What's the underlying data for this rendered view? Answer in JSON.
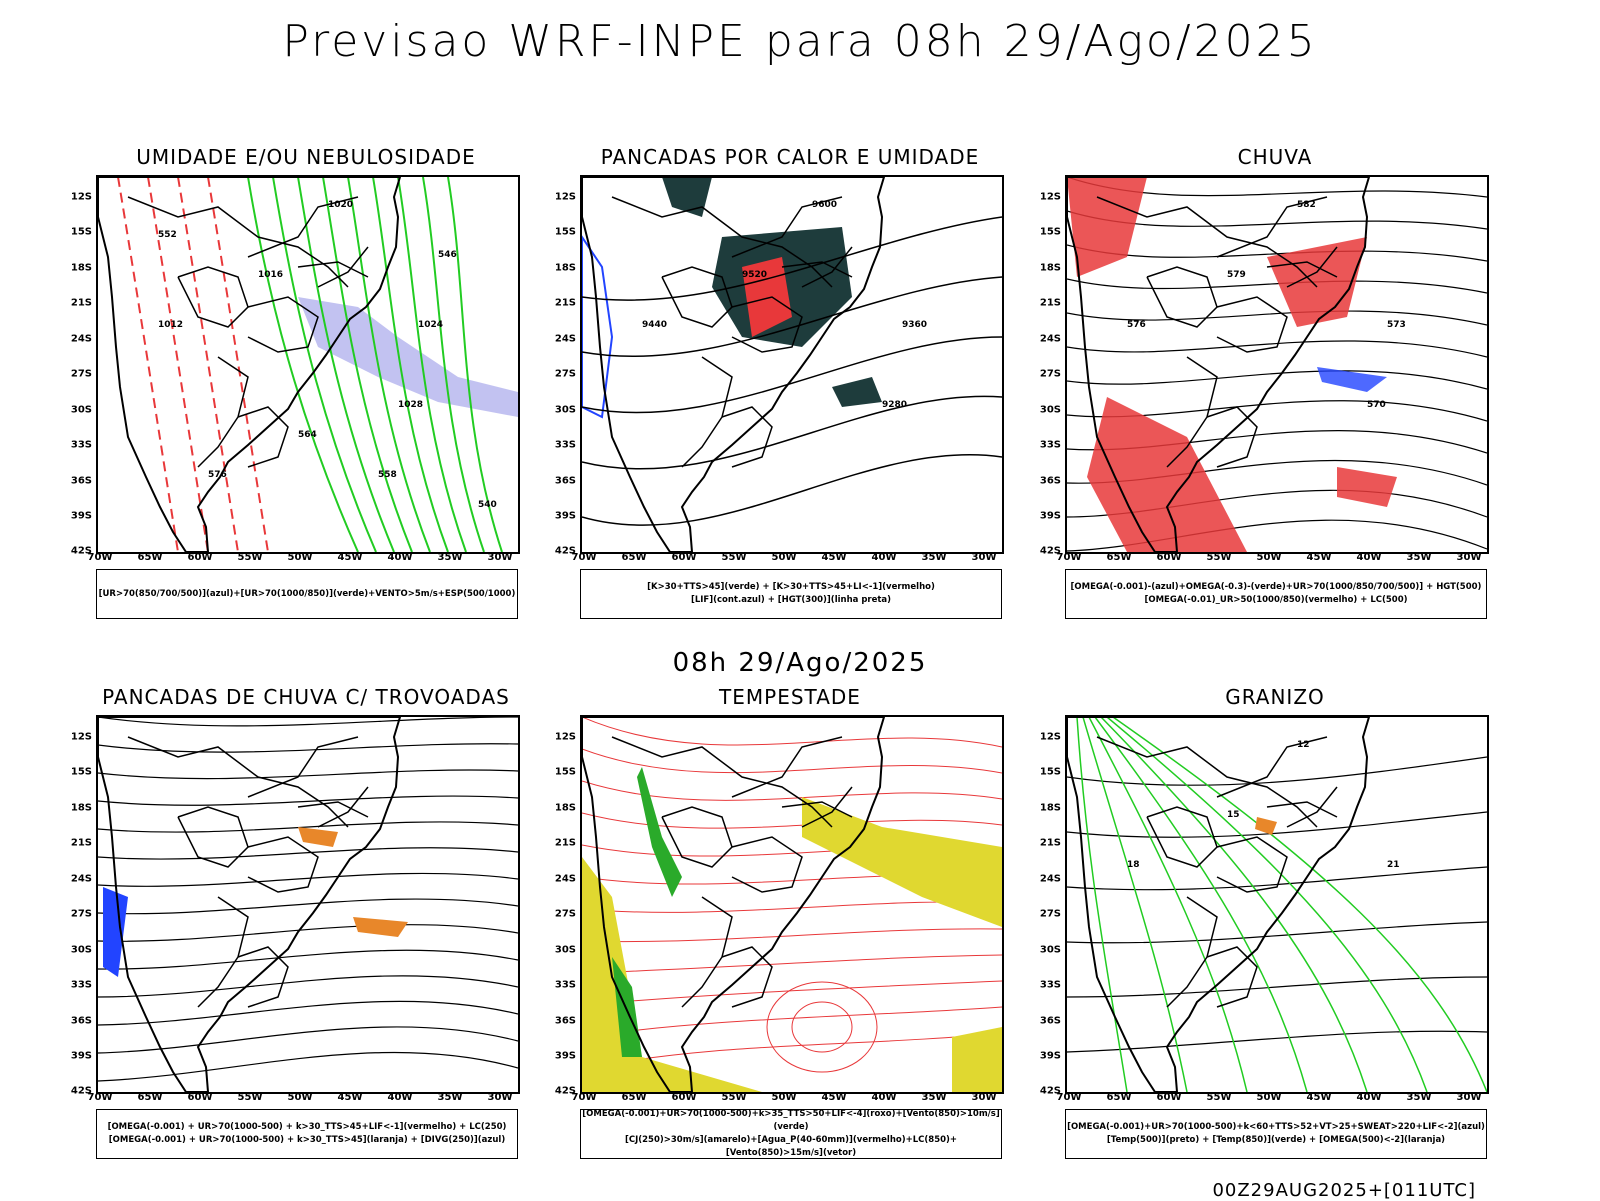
{
  "header": {
    "title": "Previsao WRF-INPE  para 08h 29/Ago/2025"
  },
  "mid_timestamp": "08h 29/Ago/2025",
  "footer": "00Z29AUG2025+[011UTC]",
  "axes": {
    "lat": [
      "12S",
      "15S",
      "18S",
      "21S",
      "24S",
      "27S",
      "30S",
      "33S",
      "36S",
      "39S",
      "42S"
    ],
    "lon": [
      "70W",
      "65W",
      "60W",
      "55W",
      "50W",
      "45W",
      "40W",
      "35W",
      "30W"
    ]
  },
  "panels": [
    {
      "title": "UMIDADE E/OU NEBULOSIDADE",
      "legend": [
        "[UR>70(850/700/500)](azul)+[UR>70(1000/850)](verde)+VENTO>5m/s+ESP(500/1000)"
      ],
      "labels": [
        "1020",
        "1016",
        "1012",
        "1024",
        "1028",
        "564",
        "576",
        "558",
        "552",
        "546",
        "540"
      ]
    },
    {
      "title": "PANCADAS POR CALOR E UMIDADE",
      "legend": [
        "[K>30+TTS>45](verde) + [K>30+TTS>45+LI<-1](vermelho)",
        "[LIF](cont.azul) + [HGT(300)](linha preta)"
      ],
      "labels": [
        "9600",
        "9520",
        "9440",
        "9360",
        "9280"
      ]
    },
    {
      "title": "CHUVA",
      "legend": [
        "[OMEGA(-0.001)-(azul)+OMEGA(-0.3)-(verde)+UR>70(1000/850/700/500)] + HGT(500)",
        "[OMEGA(-0.01)_UR>50(1000/850)(vermelho) + LC(500)"
      ],
      "labels": [
        "582",
        "579",
        "576",
        "573",
        "570"
      ]
    },
    {
      "title": "PANCADAS DE CHUVA C/ TROVOADAS",
      "legend": [
        "[OMEGA(-0.001) + UR>70(1000-500) + k>30_TTS>45+LIF<-1](vermelho) + LC(250)",
        "[OMEGA(-0.001) + UR>70(1000-500) + k>30_TTS>45](laranja) + [DIVG(250)](azul)"
      ],
      "labels": []
    },
    {
      "title": "TEMPESTADE",
      "legend": [
        "[OMEGA(-0.001)+UR>70(1000-500)+k>35_TTS>50+LIF<-4](roxo)+[Vento(850)>10m/s](verde)",
        "[CJ(250)>30m/s](amarelo)+[Agua_P(40-60mm)](vermelho)+LC(850)+[Vento(850)>15m/s](vetor)"
      ],
      "labels": []
    },
    {
      "title": "GRANIZO",
      "legend": [
        "[OMEGA(-0.001)+UR>70(1000-500)+k<60+TTS>52+VT>25+SWEAT>220+LIF<-2](azul)",
        "[Temp(500)](preto) + [Temp(850)](verde) + [OMEGA(500)<-2](laranja)"
      ],
      "labels": [
        "12",
        "15",
        "18",
        "21"
      ]
    }
  ],
  "colors": {
    "red": "#e8383a",
    "green": "#22cc22",
    "blue": "#2244ff",
    "lavender": "#b3b3ee",
    "darkteal": "#1e3c3c",
    "yellow": "#e0d830",
    "orange": "#e8872a"
  }
}
